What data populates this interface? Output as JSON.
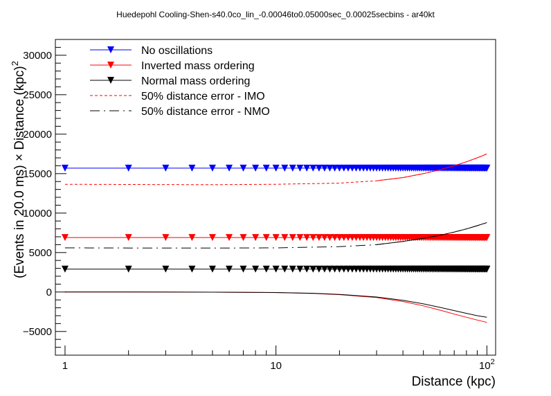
{
  "chart_data": {
    "type": "line",
    "title": "Huedepohl Cooling-Shen-s40.0co_lin_-0.00046to0.05000sec_0.00025secbins - ar40kt",
    "xlabel": "Distance (kpc)",
    "ylabel_main": "(Events in 20.0 ms) × Distance (kpc)",
    "ylabel_sup": "2",
    "x_scale": "log",
    "xlim": [
      0.9,
      110
    ],
    "ylim": [
      -8000,
      32000
    ],
    "x_ticks": [
      {
        "value": 1,
        "label": "1"
      },
      {
        "value": 10,
        "label": "10"
      },
      {
        "value": 100,
        "label": "10",
        "sup": "2"
      }
    ],
    "y_ticks": [
      {
        "value": -5000,
        "label": "−5000"
      },
      {
        "value": 0,
        "label": "0"
      },
      {
        "value": 5000,
        "label": "5000"
      },
      {
        "value": 10000,
        "label": "10000"
      },
      {
        "value": 15000,
        "label": "15000"
      },
      {
        "value": 20000,
        "label": "20000"
      },
      {
        "value": 25000,
        "label": "25000"
      },
      {
        "value": 30000,
        "label": "30000"
      }
    ],
    "grid": false,
    "legend_position": "top-left",
    "marker_x": [
      1,
      2,
      3,
      4,
      5,
      6,
      7,
      8,
      9,
      10,
      11,
      12,
      13,
      14,
      15,
      16,
      17,
      18,
      19,
      20,
      21,
      22,
      23,
      24,
      25,
      26,
      27,
      28,
      29,
      30,
      31,
      32,
      33,
      34,
      35,
      36,
      37,
      38,
      39,
      40,
      41,
      42,
      43,
      44,
      45,
      46,
      47,
      48,
      49,
      50,
      51,
      52,
      53,
      54,
      55,
      56,
      57,
      58,
      59,
      60,
      61,
      62,
      63,
      64,
      65,
      66,
      67,
      68,
      69,
      70,
      71,
      72,
      73,
      74,
      75,
      76,
      77,
      78,
      79,
      80,
      81,
      82,
      83,
      84,
      85,
      86,
      87,
      88,
      89,
      90,
      91,
      92,
      93,
      94,
      95,
      96,
      97,
      98,
      99,
      100
    ],
    "series": [
      {
        "name": "No oscillations",
        "style": "marker",
        "color": "#0000ff",
        "y": 15700
      },
      {
        "name": "Inverted mass ordering",
        "style": "marker",
        "color": "#ff0000",
        "y": 6900
      },
      {
        "name": "Normal mass ordering",
        "style": "marker",
        "color": "#000000",
        "y": 2900
      },
      {
        "name": "50% distance error - IMO",
        "style": "dashed",
        "color": "#ff0000",
        "x": [
          1,
          2,
          5,
          10,
          20,
          30,
          40,
          50,
          60,
          70,
          80,
          90,
          100
        ],
        "y": [
          13650,
          13620,
          13600,
          13650,
          13800,
          14100,
          14500,
          15000,
          15500,
          16000,
          16500,
          17000,
          17500
        ]
      },
      {
        "name": "50% distance error - NMO",
        "style": "dashdot",
        "color": "#000000",
        "x": [
          1,
          2,
          5,
          10,
          20,
          30,
          40,
          50,
          60,
          70,
          80,
          90,
          100
        ],
        "y": [
          5600,
          5580,
          5570,
          5600,
          5750,
          6000,
          6400,
          6800,
          7200,
          7600,
          8000,
          8400,
          8800
        ]
      },
      {
        "name": "lower envelope - IMO",
        "style": "solid",
        "color": "#ff0000",
        "legend": false,
        "x": [
          1,
          2,
          5,
          10,
          15,
          20,
          30,
          40,
          50,
          60,
          70,
          80,
          90,
          100
        ],
        "y": [
          0,
          0,
          -20,
          -70,
          -180,
          -330,
          -700,
          -1200,
          -1750,
          -2300,
          -2800,
          -3200,
          -3550,
          -3850
        ]
      },
      {
        "name": "lower envelope - NMO",
        "style": "solid",
        "color": "#000000",
        "legend": false,
        "x": [
          1,
          2,
          5,
          10,
          15,
          20,
          30,
          40,
          50,
          60,
          70,
          80,
          90,
          100
        ],
        "y": [
          0,
          0,
          -20,
          -60,
          -160,
          -300,
          -630,
          -1050,
          -1500,
          -1950,
          -2350,
          -2700,
          -3000,
          -3200
        ]
      }
    ]
  }
}
